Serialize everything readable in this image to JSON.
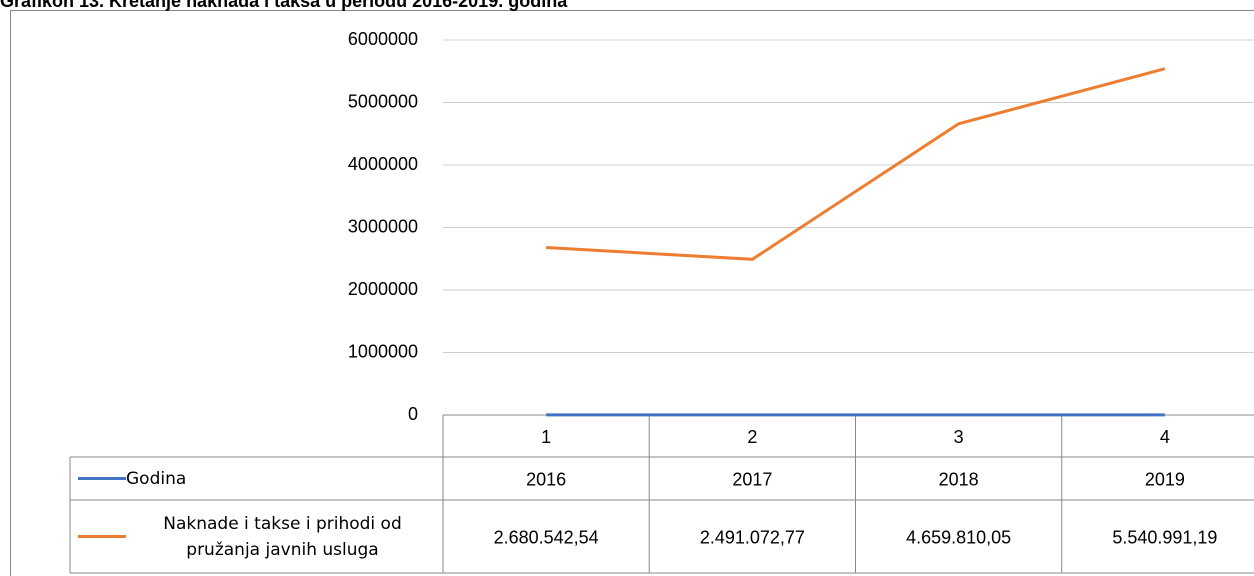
{
  "chart_data": {
    "type": "line",
    "title": "Grafikon 13. Kretanje naknada i taksa u periodu 2016-2019. godina",
    "categories": [
      "1",
      "2",
      "3",
      "4"
    ],
    "series": [
      {
        "name": "Godina",
        "color": "#4472c4",
        "values": [
          2016,
          2017,
          2018,
          2019
        ]
      },
      {
        "name": "Naknade i takse i prihodi od pružanja javnih usluga",
        "color": "#ed7d31",
        "values": [
          2680542.54,
          2491072.77,
          4659810.05,
          5540991.19
        ],
        "value_labels": [
          "2.680.542,54",
          "2.491.072,77",
          "4.659.810,05",
          "5.540.991,19"
        ]
      }
    ],
    "ylim": [
      0,
      6000000
    ],
    "yticks": [
      0,
      1000000,
      2000000,
      3000000,
      4000000,
      5000000,
      6000000
    ],
    "grid": true,
    "data_table": true
  }
}
